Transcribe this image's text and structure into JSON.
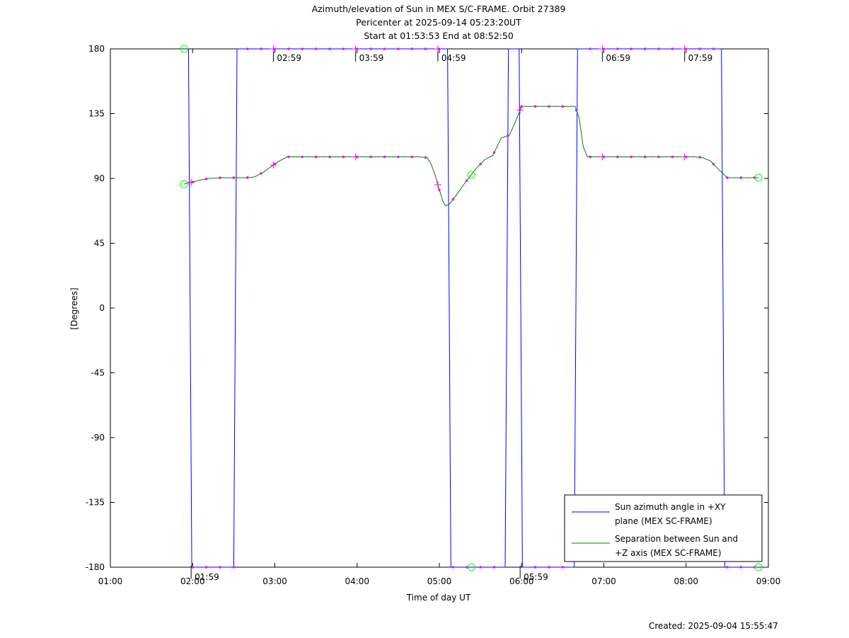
{
  "chart_data": {
    "type": "line",
    "title": [
      "Azimuth/elevation of Sun in MEX S/C-FRAME.  Orbit 27389",
      "Pericenter at 2025-09-14 05:23:20UT",
      "Start at 01:53:53 End at 08:52:50"
    ],
    "xlabel": "Time of day UT",
    "ylabel": "[Degrees]",
    "xlim": [
      1.0,
      9.0
    ],
    "ylim": [
      -180,
      180
    ],
    "x_ticks": [
      1,
      2,
      3,
      4,
      5,
      6,
      7,
      8,
      9
    ],
    "x_tick_labels": [
      "01:00",
      "02:00",
      "03:00",
      "04:00",
      "05:00",
      "06:00",
      "07:00",
      "08:00",
      "09:00"
    ],
    "y_ticks": [
      180,
      135,
      90,
      45,
      0,
      -45,
      -90,
      -135,
      -180
    ],
    "y_tick_labels": [
      "180",
      "135",
      "90",
      "45",
      "0",
      "-45",
      "-90",
      "-135",
      "-180"
    ],
    "grid": false,
    "legend_position": "bottom-right",
    "series": [
      {
        "name": "Sun azimuth angle in +XY plane (MEX SC-FRAME)",
        "color": "#0000ff",
        "x": [
          1.898,
          1.93,
          1.95,
          1.96,
          1.97,
          1.98,
          1.99,
          2.2,
          2.5,
          2.51,
          2.52,
          2.53,
          2.54,
          2.7,
          3.0,
          3.5,
          4.0,
          4.5,
          5.05,
          5.1,
          5.11,
          5.12,
          5.13,
          5.14,
          5.5,
          5.8,
          5.81,
          5.82,
          5.83,
          5.84,
          5.95,
          5.97,
          5.98,
          5.99,
          6.0,
          6.01,
          6.2,
          6.5,
          6.64,
          6.65,
          6.66,
          6.67,
          6.68,
          6.69,
          6.7,
          7.0,
          7.5,
          8.0,
          8.3,
          8.43,
          8.44,
          8.45,
          8.46,
          8.47,
          8.48,
          8.7,
          8.881
        ],
        "y": [
          180,
          180,
          180,
          90,
          0,
          -90,
          -180,
          -180,
          -180,
          -90,
          0,
          90,
          180,
          180,
          180,
          180,
          180,
          180,
          180,
          180,
          90,
          0,
          -90,
          -180,
          -180,
          -180,
          -90,
          0,
          90,
          180,
          180,
          180,
          90,
          0,
          -90,
          -180,
          -180,
          -180,
          -180,
          -90,
          0,
          90,
          180,
          180,
          180,
          180,
          180,
          180,
          180,
          180,
          90,
          0,
          -90,
          -180,
          -180,
          -180,
          -180
        ]
      },
      {
        "name": "Separation between Sun and +Z axis (MEX SC-FRAME)",
        "color": "#008000",
        "x": [
          1.898,
          1.95,
          2.0,
          2.1,
          2.2,
          2.35,
          2.5,
          2.65,
          2.75,
          2.85,
          2.95,
          3.05,
          3.15,
          3.3,
          3.5,
          3.8,
          4.0,
          4.3,
          4.6,
          4.75,
          4.85,
          4.9,
          4.95,
          5.0,
          5.05,
          5.08,
          5.12,
          5.2,
          5.3,
          5.45,
          5.55,
          5.65,
          5.75,
          5.8,
          5.85,
          5.9,
          6.0,
          6.1,
          6.3,
          6.6,
          6.65,
          6.7,
          6.75,
          6.8,
          7.0,
          7.5,
          8.0,
          8.1,
          8.2,
          8.3,
          8.35,
          8.4,
          8.5,
          8.881
        ],
        "y": [
          86,
          87,
          87.5,
          89,
          90,
          90.5,
          90.5,
          90.5,
          91,
          94,
          98,
          102,
          105,
          105,
          105,
          105,
          105,
          105,
          105,
          105,
          104.5,
          100,
          92,
          82,
          73,
          71,
          72,
          78,
          86,
          97,
          103,
          106,
          118,
          119,
          120,
          126,
          140,
          140,
          140,
          140,
          140,
          132,
          112,
          105,
          105,
          105,
          105,
          105,
          104.5,
          102,
          99,
          96,
          90.5,
          90.5
        ]
      }
    ],
    "marker_times": [
      1.982,
      2.982,
      3.982,
      4.982,
      5.982,
      6.982,
      7.982
    ],
    "marker_labels": [
      "01:59",
      "02:59",
      "03:59",
      "04:59",
      "05:59",
      "06:59",
      "07:59"
    ],
    "marker_label_positions": [
      "bottom",
      "top",
      "top",
      "top",
      "bottom",
      "top",
      "top"
    ],
    "marker_color": "#ff00ff",
    "circle_color": "#00ff00",
    "created": "Created: 2025-09-04 15:55:47"
  }
}
